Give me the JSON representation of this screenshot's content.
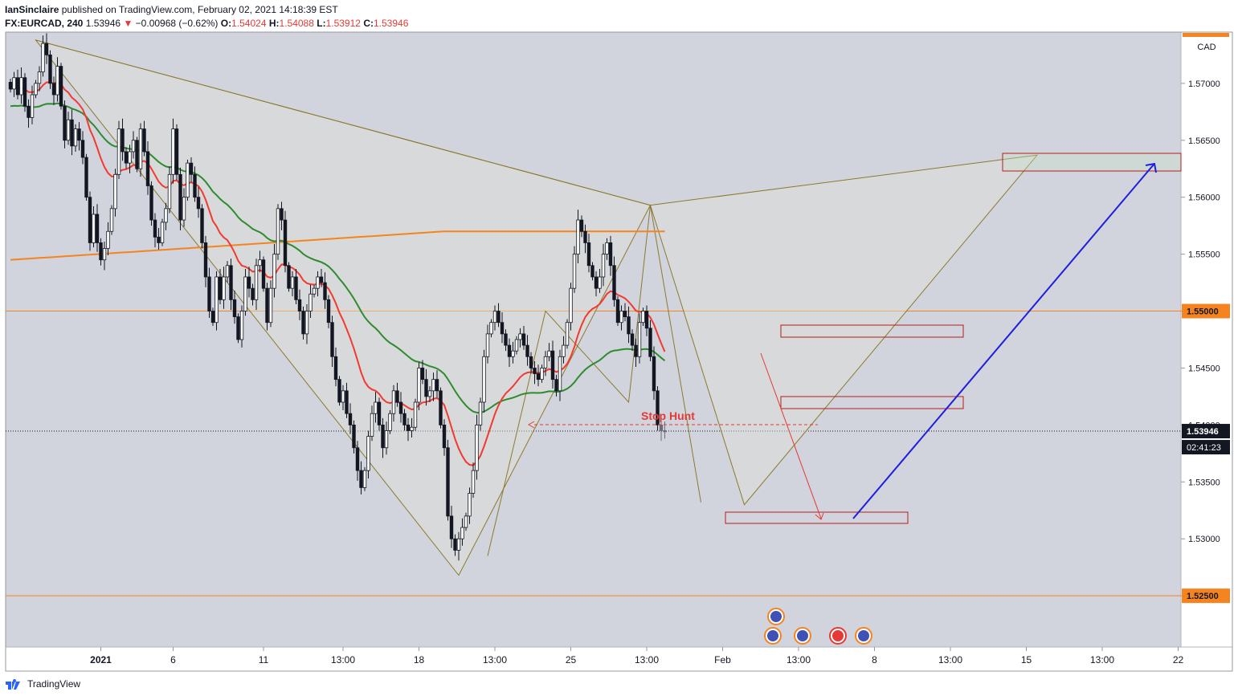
{
  "header": {
    "publisher": "IanSinclaire",
    "published_text": "published on TradingView.com, February 02, 2021 14:18:39 EST",
    "symbol": "FX:EURCAD, 240",
    "last": "1.53946",
    "change": "−0.00968 (−0.62%)",
    "o_label": "O:",
    "o": "1.54024",
    "h_label": "H:",
    "h": "1.54088",
    "l_label": "L:",
    "l": "1.53912",
    "c_label": "C:",
    "c": "1.53946"
  },
  "footer": {
    "brand": "TradingView"
  },
  "colors": {
    "up": "#ffffff",
    "down": "#131722",
    "wick": "#131722",
    "ema_fast": "#f23a2f",
    "ema_mid": "#2e8b2e",
    "ema_slow": "#f5841f",
    "pattern": "#8b7a2e",
    "zone": "#b71c1c",
    "arrow_blue": "#1e1ee0",
    "arrow_red": "#e53935",
    "level": "#f5841f",
    "plot_bg": "#d1d4dc"
  },
  "chart_data": {
    "type": "candlestick",
    "currency": "CAD",
    "ylim": [
      1.5205,
      1.5745
    ],
    "y_ticks": [
      "1.57000",
      "1.56500",
      "1.56000",
      "1.55500",
      "1.55000",
      "1.54500",
      "1.54000",
      "1.53500",
      "1.53000",
      "1.52500"
    ],
    "x_ticks": [
      {
        "label": "2021",
        "bold": true,
        "i": 25
      },
      {
        "label": "6",
        "i": 45
      },
      {
        "label": "11",
        "i": 70
      },
      {
        "label": "13:00",
        "i": 92
      },
      {
        "label": "18",
        "i": 113
      },
      {
        "label": "13:00",
        "i": 134
      },
      {
        "label": "25",
        "i": 155
      },
      {
        "label": "13:00",
        "i": 176
      },
      {
        "label": "Feb",
        "i": 197
      },
      {
        "label": "13:00",
        "i": 218
      },
      {
        "label": "8",
        "i": 239
      },
      {
        "label": "13:00",
        "i": 260
      },
      {
        "label": "15",
        "i": 281
      },
      {
        "label": "13:00",
        "i": 302
      },
      {
        "label": "22",
        "i": 323
      }
    ],
    "horizontal_levels": [
      {
        "price": 1.55,
        "label": "1.55000"
      },
      {
        "price": 1.525,
        "label": "1.52500"
      }
    ],
    "last_price": {
      "price": 1.53946,
      "label": "1.53946",
      "countdown": "02:41:23"
    },
    "annotation": {
      "text": "Stop Hunt"
    },
    "candles_close": [
      1.5695,
      1.5705,
      1.569,
      1.5705,
      1.568,
      1.567,
      1.569,
      1.57,
      1.571,
      1.5735,
      1.5725,
      1.57,
      1.569,
      1.5715,
      1.568,
      1.565,
      1.5668,
      1.5645,
      1.566,
      1.565,
      1.5635,
      1.56,
      1.556,
      1.5585,
      1.556,
      1.5545,
      1.5555,
      1.557,
      1.559,
      1.562,
      1.566,
      1.564,
      1.563,
      1.564,
      1.565,
      1.5625,
      1.566,
      1.564,
      1.561,
      1.558,
      1.5565,
      1.556,
      1.5578,
      1.559,
      1.562,
      1.566,
      1.562,
      1.558,
      1.56,
      1.563,
      1.562,
      1.56,
      1.559,
      1.556,
      1.553,
      1.55,
      1.549,
      1.553,
      1.551,
      1.553,
      1.554,
      1.551,
      1.5495,
      1.5475,
      1.55,
      1.553,
      1.552,
      1.551,
      1.554,
      1.5545,
      1.552,
      1.549,
      1.552,
      1.555,
      1.559,
      1.558,
      1.554,
      1.552,
      1.553,
      1.551,
      1.55,
      1.548,
      1.55,
      1.5515,
      1.552,
      1.553,
      1.5525,
      1.551,
      1.549,
      1.546,
      1.544,
      1.542,
      1.543,
      1.541,
      1.54,
      1.538,
      1.536,
      1.5345,
      1.536,
      1.539,
      1.541,
      1.542,
      1.54,
      1.538,
      1.5395,
      1.541,
      1.543,
      1.542,
      1.541,
      1.54,
      1.5395,
      1.5398,
      1.542,
      1.545,
      1.544,
      1.5425,
      1.543,
      1.544,
      1.543,
      1.54,
      1.538,
      1.532,
      1.53,
      1.529,
      1.53,
      1.531,
      1.532,
      1.534,
      1.536,
      1.54,
      1.542,
      1.546,
      1.548,
      1.549,
      1.55,
      1.549,
      1.548,
      1.547,
      1.546,
      1.5465,
      1.5475,
      1.548,
      1.547,
      1.546,
      1.545,
      1.5445,
      1.544,
      1.545,
      1.546,
      1.5465,
      1.544,
      1.543,
      1.546,
      1.547,
      1.549,
      1.552,
      1.555,
      1.558,
      1.557,
      1.556,
      1.554,
      1.553,
      1.552,
      1.553,
      1.555,
      1.556,
      1.554,
      1.551,
      1.549,
      1.55,
      1.5495,
      1.548,
      1.547,
      1.546,
      1.549,
      1.55,
      1.5485,
      1.546,
      1.543,
      1.54,
      1.5395,
      1.5394
    ]
  }
}
